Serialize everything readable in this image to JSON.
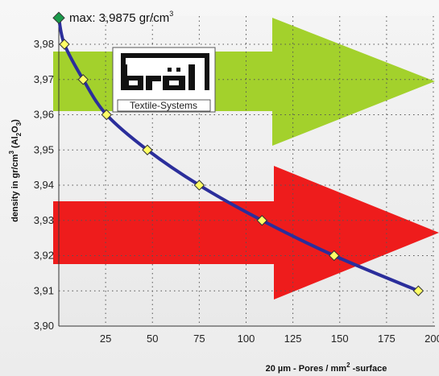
{
  "chart_data": {
    "type": "line",
    "x": [
      0,
      3,
      13,
      25.5,
      47.3,
      75,
      108.5,
      147,
      192
    ],
    "y": [
      3.9875,
      3.98,
      3.97,
      3.96,
      3.95,
      3.94,
      3.93,
      3.92,
      3.91
    ],
    "xlim": [
      0,
      200
    ],
    "ylim": [
      3.9,
      3.98
    ],
    "x_ticks": [
      "25",
      "50",
      "75",
      "100",
      "125",
      "150",
      "175",
      "200"
    ],
    "y_ticks": [
      "3,90",
      "3,91",
      "3,92",
      "3,93",
      "3,94",
      "3,95",
      "3,96",
      "3,97",
      "3,98"
    ],
    "xlabel_prefix": "20 µm - Pores / mm",
    "xlabel_sup": "2",
    "xlabel_suffix": " -surface",
    "ylabel_prefix": "density in gr/cm",
    "ylabel_sup": "3",
    "ylabel_mid": " (Al",
    "ylabel_sub1": "2",
    "ylabel_mid2": "O",
    "ylabel_sub2": "3",
    "ylabel_end": ")",
    "annotation_text": "max: 3,9875 gr/cm",
    "annotation_sup": "3",
    "grid": true,
    "line_color": "#2b2e9b",
    "marker_color": "#ffff66",
    "max_marker_color": "#1a9a4a",
    "green_arrow_color": "#a3d12c",
    "red_arrow_color": "#ee1c1c",
    "logo_text": "Textile-Systems"
  }
}
